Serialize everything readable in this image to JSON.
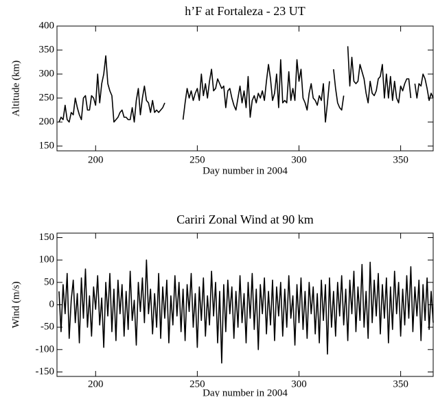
{
  "chart_data": [
    {
      "type": "line",
      "title": "h’F at Fortaleza - 23 UT",
      "xlabel": "Day number in 2004",
      "ylabel": "Altitude (km)",
      "color": "#000000",
      "xlim": [
        181,
        366
      ],
      "ylim": [
        140,
        400
      ],
      "xticks": [
        200,
        250,
        300,
        350
      ],
      "yticks": [
        150,
        200,
        250,
        300,
        350,
        400
      ],
      "x": [
        182,
        183,
        184,
        185,
        186,
        187,
        188,
        189,
        190,
        191,
        192,
        193,
        194,
        195,
        196,
        197,
        198,
        199,
        200,
        201,
        202,
        203,
        204,
        205,
        206,
        207,
        208,
        209,
        210,
        211,
        212,
        213,
        214,
        215,
        216,
        217,
        218,
        219,
        220,
        221,
        222,
        223,
        224,
        225,
        226,
        227,
        228,
        229,
        230,
        231,
        232,
        233,
        234,
        235,
        236,
        237,
        238,
        239,
        240,
        241,
        242,
        243,
        244,
        245,
        246,
        247,
        248,
        249,
        250,
        251,
        252,
        253,
        254,
        255,
        256,
        257,
        258,
        259,
        260,
        261,
        262,
        263,
        264,
        265,
        266,
        267,
        268,
        269,
        270,
        271,
        272,
        273,
        274,
        275,
        276,
        277,
        278,
        279,
        280,
        281,
        282,
        283,
        284,
        285,
        286,
        287,
        288,
        289,
        290,
        291,
        292,
        293,
        294,
        295,
        296,
        297,
        298,
        299,
        300,
        301,
        302,
        303,
        304,
        305,
        306,
        307,
        308,
        309,
        310,
        311,
        312,
        313,
        314,
        315,
        316,
        317,
        318,
        319,
        320,
        321,
        322,
        323,
        324,
        325,
        326,
        327,
        328,
        329,
        330,
        331,
        332,
        333,
        334,
        335,
        336,
        337,
        338,
        339,
        340,
        341,
        342,
        343,
        344,
        345,
        346,
        347,
        348,
        349,
        350,
        351,
        352,
        353,
        354,
        355,
        356,
        357,
        358,
        359,
        360,
        361,
        362,
        363,
        364,
        365,
        366
      ],
      "values": [
        200,
        210,
        205,
        235,
        205,
        200,
        220,
        215,
        250,
        230,
        215,
        205,
        250,
        255,
        225,
        225,
        255,
        250,
        235,
        300,
        240,
        280,
        300,
        338,
        280,
        265,
        255,
        200,
        205,
        210,
        220,
        225,
        210,
        210,
        205,
        205,
        230,
        200,
        245,
        270,
        215,
        250,
        275,
        245,
        240,
        220,
        245,
        220,
        225,
        220,
        225,
        230,
        240,
        null,
        null,
        null,
        null,
        null,
        null,
        null,
        null,
        205,
        240,
        270,
        250,
        265,
        245,
        260,
        270,
        245,
        300,
        255,
        280,
        250,
        285,
        310,
        265,
        270,
        290,
        280,
        270,
        275,
        230,
        265,
        270,
        250,
        235,
        225,
        250,
        275,
        240,
        265,
        230,
        295,
        210,
        245,
        255,
        240,
        260,
        250,
        265,
        245,
        285,
        320,
        290,
        245,
        260,
        300,
        230,
        330,
        240,
        245,
        240,
        305,
        245,
        270,
        245,
        330,
        285,
        310,
        250,
        240,
        225,
        260,
        280,
        250,
        245,
        235,
        255,
        245,
        280,
        200,
        240,
        285,
        null,
        310,
        270,
        240,
        230,
        225,
        255,
        null,
        358,
        275,
        335,
        285,
        280,
        285,
        320,
        305,
        290,
        260,
        240,
        285,
        260,
        255,
        265,
        290,
        295,
        320,
        250,
        300,
        250,
        295,
        245,
        285,
        250,
        240,
        275,
        265,
        280,
        290,
        290,
        250,
        null,
        280,
        250,
        280,
        275,
        300,
        290,
        270,
        245,
        260,
        250
      ]
    },
    {
      "type": "line",
      "title": "Cariri Zonal Wind at 90 km",
      "xlabel": "Day number in 2004",
      "ylabel": "Wind (m/s)",
      "color": "#000000",
      "xlim": [
        181,
        366
      ],
      "ylim": [
        -160,
        160
      ],
      "xticks": [
        200,
        250,
        300,
        350
      ],
      "yticks": [
        -150,
        -100,
        -50,
        0,
        50,
        100,
        150
      ],
      "x": [
        182,
        183,
        184,
        185,
        186,
        187,
        188,
        189,
        190,
        191,
        192,
        193,
        194,
        195,
        196,
        197,
        198,
        199,
        200,
        201,
        202,
        203,
        204,
        205,
        206,
        207,
        208,
        209,
        210,
        211,
        212,
        213,
        214,
        215,
        216,
        217,
        218,
        219,
        220,
        221,
        222,
        223,
        224,
        225,
        226,
        227,
        228,
        229,
        230,
        231,
        232,
        233,
        234,
        235,
        236,
        237,
        238,
        239,
        240,
        241,
        242,
        243,
        244,
        245,
        246,
        247,
        248,
        249,
        250,
        251,
        252,
        253,
        254,
        255,
        256,
        257,
        258,
        259,
        260,
        261,
        262,
        263,
        264,
        265,
        266,
        267,
        268,
        269,
        270,
        271,
        272,
        273,
        274,
        275,
        276,
        277,
        278,
        279,
        280,
        281,
        282,
        283,
        284,
        285,
        286,
        287,
        288,
        289,
        290,
        291,
        292,
        293,
        294,
        295,
        296,
        297,
        298,
        299,
        300,
        301,
        302,
        303,
        304,
        305,
        306,
        307,
        308,
        309,
        310,
        311,
        312,
        313,
        314,
        315,
        316,
        317,
        318,
        319,
        320,
        321,
        322,
        323,
        324,
        325,
        326,
        327,
        328,
        329,
        330,
        331,
        332,
        333,
        334,
        335,
        336,
        337,
        338,
        339,
        340,
        341,
        342,
        343,
        344,
        345,
        346,
        347,
        348,
        349,
        350,
        351,
        352,
        353,
        354,
        355,
        356,
        357,
        358,
        359,
        360,
        361,
        362,
        363,
        364,
        365,
        366
      ],
      "values": [
        30,
        -60,
        45,
        -20,
        70,
        -75,
        10,
        55,
        -40,
        25,
        -85,
        60,
        -30,
        80,
        -50,
        20,
        -70,
        40,
        -10,
        65,
        -45,
        15,
        -95,
        50,
        -25,
        70,
        -60,
        35,
        -80,
        55,
        -20,
        45,
        -70,
        30,
        -55,
        75,
        -35,
        10,
        -90,
        50,
        -15,
        60,
        -40,
        100,
        -20,
        35,
        -65,
        25,
        -50,
        70,
        -75,
        40,
        -30,
        55,
        -85,
        20,
        -45,
        65,
        -25,
        50,
        -60,
        35,
        -80,
        45,
        -15,
        70,
        -50,
        25,
        -95,
        40,
        -35,
        60,
        -70,
        20,
        -45,
        75,
        -25,
        50,
        -85,
        30,
        -130,
        45,
        -60,
        55,
        -20,
        40,
        -75,
        30,
        -50,
        65,
        -40,
        25,
        -85,
        50,
        -30,
        70,
        -55,
        35,
        -100,
        45,
        -20,
        60,
        -65,
        30,
        -45,
        55,
        -80,
        40,
        -25,
        50,
        -70,
        35,
        -50,
        65,
        -30,
        20,
        -90,
        45,
        -40,
        60,
        -55,
        30,
        -75,
        50,
        -20,
        40,
        -65,
        25,
        -85,
        55,
        -35,
        45,
        -110,
        60,
        -50,
        30,
        -70,
        50,
        -25,
        65,
        -45,
        35,
        -80,
        55,
        -20,
        75,
        -60,
        40,
        -35,
        90,
        -50,
        30,
        -75,
        95,
        -40,
        55,
        -25,
        70,
        -65,
        45,
        -30,
        60,
        -85,
        40,
        -55,
        75,
        -20,
        50,
        -70,
        35,
        -45,
        65,
        -30,
        85,
        -60,
        40,
        -25,
        55,
        -80,
        45,
        -35,
        60,
        -55,
        30,
        -40
      ]
    }
  ]
}
